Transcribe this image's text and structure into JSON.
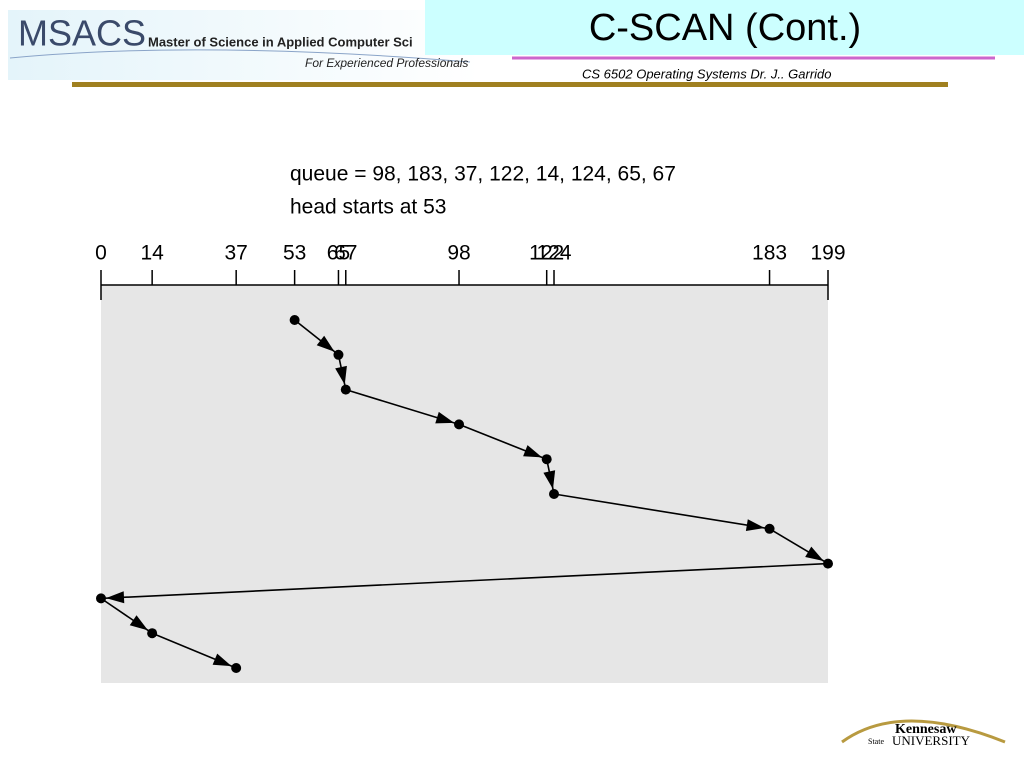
{
  "header": {
    "logo": "MSACS",
    "program": "Master of Science in Applied Computer Sci",
    "tagline": "For Experienced Professionals",
    "title": "C-SCAN (Cont.)",
    "course": "CS 6502 Operating Systems   Dr. J.. Garrido"
  },
  "chart_data": {
    "type": "line",
    "annotations": [
      "queue = 98, 183, 37, 122, 14, 124, 65, 67",
      "head starts at 53"
    ],
    "x": [
      53,
      65,
      67,
      98,
      122,
      124,
      183,
      199,
      0,
      14,
      37
    ],
    "xlim": [
      0,
      199
    ],
    "xticks": [
      0,
      14,
      37,
      53,
      65,
      67,
      98,
      122,
      124,
      183,
      199
    ],
    "color": "#000000"
  },
  "footer": {
    "logo_top": "Kennesaw",
    "logo_state": "State",
    "logo_bottom": "UNIVERSITY"
  }
}
